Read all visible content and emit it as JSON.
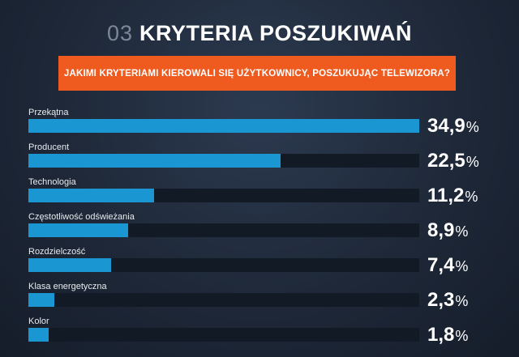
{
  "header": {
    "number": "03",
    "title": "KRYTERIA POSZUKIWAŃ",
    "question": "JAKIMI KRYTERIAMI KIEROWALI SIĘ UŻYTKOWNICY, POSZUKUJĄC TELEWIZORA?"
  },
  "colors": {
    "accent_orange": "#ef5a1e",
    "bar_fill": "#1a96d2",
    "bar_track": "#121a26",
    "background": "#1e2838"
  },
  "chart_data": {
    "type": "bar",
    "orientation": "horizontal",
    "categories": [
      "Przekątna",
      "Producent",
      "Technologia",
      "Częstotliwość odświeżania",
      "Rozdzielczość",
      "Klasa energetyczna",
      "Kolor"
    ],
    "values": [
      34.9,
      22.5,
      11.2,
      8.9,
      7.4,
      2.3,
      1.8
    ],
    "value_labels": [
      "34,9",
      "22,5",
      "11,2",
      "8,9",
      "7,4",
      "2,3",
      "1,8"
    ],
    "unit": "%",
    "xlim": [
      0,
      34.9
    ],
    "title": "",
    "xlabel": "",
    "ylabel": "",
    "grid": false,
    "legend": "none"
  }
}
